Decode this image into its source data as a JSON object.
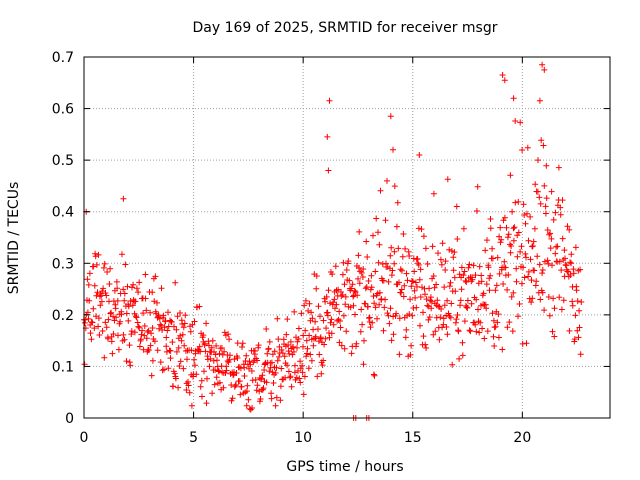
{
  "chart_data": {
    "type": "scatter",
    "title": "Day 169 of 2025, SRMTID for receiver msgr",
    "xlabel": "GPS time / hours",
    "ylabel": "SRMTID / TECUs",
    "xlim": [
      0,
      24
    ],
    "ylim": [
      0,
      0.7
    ],
    "grid": true,
    "marker": "+",
    "series_color": "#ff0000",
    "x_ticks": [
      0,
      5,
      10,
      15,
      20
    ],
    "x_tick_labels": [
      "0",
      "5",
      "10",
      "15",
      "20"
    ],
    "y_ticks": [
      0,
      0.1,
      0.2,
      0.3,
      0.4,
      0.5,
      0.6,
      0.7
    ],
    "y_tick_labels": [
      "0",
      "0.1",
      "0.2",
      "0.3",
      "0.4",
      "0.5",
      "0.6",
      "0.7"
    ],
    "series": [
      {
        "name": "SRMTID",
        "profile": {
          "x": [
            0,
            0.5,
            1,
            2,
            3,
            4,
            5,
            6,
            7,
            7.5,
            8,
            9,
            10,
            11,
            12,
            13,
            14,
            15,
            16,
            17,
            18,
            19,
            20,
            21,
            22,
            22.7
          ],
          "median_y": [
            0.18,
            0.23,
            0.22,
            0.2,
            0.19,
            0.14,
            0.12,
            0.12,
            0.08,
            0.07,
            0.09,
            0.11,
            0.14,
            0.2,
            0.21,
            0.22,
            0.26,
            0.24,
            0.23,
            0.24,
            0.24,
            0.27,
            0.33,
            0.35,
            0.28,
            0.25
          ],
          "spread": [
            0.06,
            0.06,
            0.06,
            0.06,
            0.05,
            0.05,
            0.05,
            0.05,
            0.04,
            0.04,
            0.04,
            0.05,
            0.06,
            0.07,
            0.07,
            0.08,
            0.08,
            0.08,
            0.07,
            0.07,
            0.07,
            0.08,
            0.1,
            0.12,
            0.1,
            0.09
          ]
        },
        "notable_points": [
          {
            "x": 11.2,
            "y": 0.615
          },
          {
            "x": 11.1,
            "y": 0.545
          },
          {
            "x": 11.15,
            "y": 0.48
          },
          {
            "x": 14.0,
            "y": 0.585
          },
          {
            "x": 14.1,
            "y": 0.52
          },
          {
            "x": 15.3,
            "y": 0.51
          },
          {
            "x": 19.1,
            "y": 0.665
          },
          {
            "x": 19.2,
            "y": 0.655
          },
          {
            "x": 19.6,
            "y": 0.62
          },
          {
            "x": 20.9,
            "y": 0.685
          },
          {
            "x": 21.0,
            "y": 0.675
          },
          {
            "x": 20.8,
            "y": 0.615
          },
          {
            "x": 1.8,
            "y": 0.425
          },
          {
            "x": 0.1,
            "y": 0.4
          },
          {
            "x": 12.3,
            "y": 0.0
          },
          {
            "x": 12.4,
            "y": 0.0
          },
          {
            "x": 12.9,
            "y": 0.0
          },
          {
            "x": 13.0,
            "y": 0.0
          }
        ]
      }
    ]
  }
}
